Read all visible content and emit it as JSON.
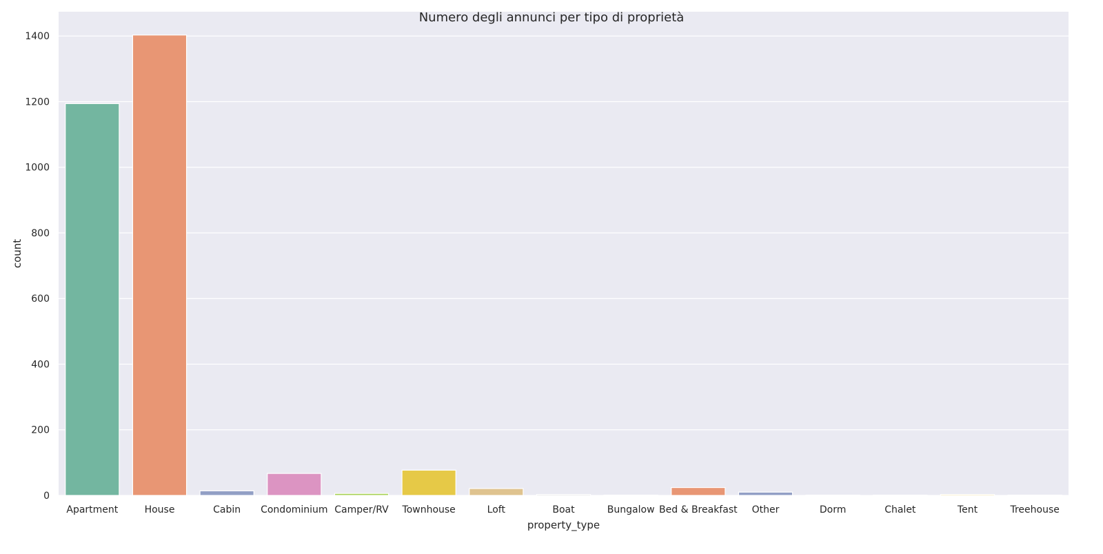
{
  "chart_data": {
    "type": "bar",
    "title": "Numero degli annunci per tipo di proprietà",
    "xlabel": "property_type",
    "ylabel": "count",
    "categories": [
      "Apartment",
      "House",
      "Cabin",
      "Condominium",
      "Camper/RV",
      "Townhouse",
      "Loft",
      "Boat",
      "Bungalow",
      "Bed & Breakfast",
      "Other",
      "Dorm",
      "Chalet",
      "Tent",
      "Treehouse"
    ],
    "values": [
      1194,
      1403,
      14,
      67,
      6,
      77,
      21,
      3,
      1,
      24,
      10,
      1,
      1,
      3,
      1
    ],
    "colors": [
      "#73b6a0",
      "#e89674",
      "#929fc5",
      "#dc94c2",
      "#a5d152",
      "#e6c947",
      "#dfc38f",
      "#b3b3b3",
      "#73b6a0",
      "#e89674",
      "#929fc5",
      "#dc94c2",
      "#a5d152",
      "#e6c947",
      "#dfc38f"
    ],
    "yticks": [
      0,
      200,
      400,
      600,
      800,
      1000,
      1200,
      1400
    ],
    "ylim": [
      0,
      1474
    ],
    "grid": true,
    "background": "#eaeaf2",
    "grid_color": "#ffffff"
  }
}
